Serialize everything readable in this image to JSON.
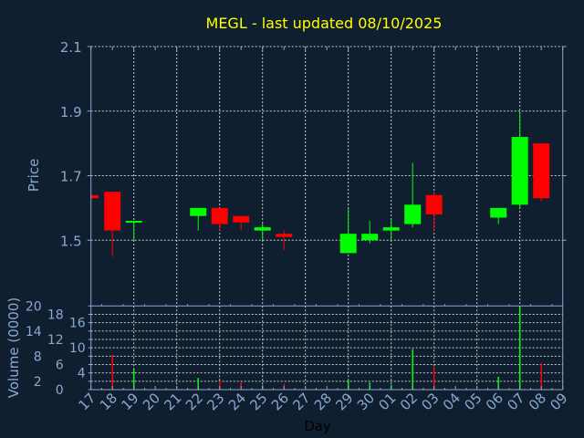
{
  "chart_data": {
    "type": "candlestick",
    "title": "MEGL - last updated 08/10/2025",
    "xlabel": "Day",
    "ylabel": "Price",
    "volume_label": "Volume (0000)",
    "x_ticks": [
      "17",
      "18",
      "19",
      "20",
      "21",
      "22",
      "23",
      "24",
      "25",
      "26",
      "27",
      "28",
      "29",
      "30",
      "01",
      "02",
      "03",
      "04",
      "05",
      "06",
      "07",
      "08",
      "09"
    ],
    "price_ylim": [
      1.3,
      2.1
    ],
    "price_ticks": [
      "1.5",
      "1.7",
      "1.9",
      "2.1"
    ],
    "volume_ylim": [
      0,
      20
    ],
    "volume_ticks": [
      "0",
      "2",
      "4",
      "6",
      "8",
      "10",
      "12",
      "14",
      "16",
      "18",
      "20"
    ],
    "grid": true,
    "colors": {
      "up": "#00ff00",
      "down": "#ff0000",
      "background": "#0f1f30",
      "axis": "#8aa8d0",
      "title": "#ffff00"
    },
    "candles": [
      {
        "day": "17",
        "open": 1.64,
        "high": 1.64,
        "low": 1.63,
        "close": 1.63,
        "volume": 0
      },
      {
        "day": "18",
        "open": 1.65,
        "high": 1.65,
        "low": 1.45,
        "close": 1.53,
        "volume": 8.3
      },
      {
        "day": "19",
        "open": 1.555,
        "high": 1.56,
        "low": 1.5,
        "close": 1.56,
        "volume": 4.8
      },
      {
        "day": "22",
        "open": 1.575,
        "high": 1.6,
        "low": 1.53,
        "close": 1.6,
        "volume": 2.8
      },
      {
        "day": "23",
        "open": 1.6,
        "high": 1.6,
        "low": 1.53,
        "close": 1.55,
        "volume": 2.0
      },
      {
        "day": "24",
        "open": 1.575,
        "high": 1.575,
        "low": 1.53,
        "close": 1.555,
        "volume": 1.8
      },
      {
        "day": "25",
        "open": 1.53,
        "high": 1.555,
        "low": 1.5,
        "close": 1.54,
        "volume": 1.0
      },
      {
        "day": "26",
        "open": 1.52,
        "high": 1.53,
        "low": 1.47,
        "close": 1.51,
        "volume": 1.4
      },
      {
        "day": "29",
        "open": 1.46,
        "high": 1.6,
        "low": 1.46,
        "close": 1.52,
        "volume": 2.2
      },
      {
        "day": "30",
        "open": 1.5,
        "high": 1.56,
        "low": 1.49,
        "close": 1.52,
        "volume": 1.7
      },
      {
        "day": "01",
        "open": 1.53,
        "high": 1.565,
        "low": 1.5,
        "close": 1.54,
        "volume": 1.1
      },
      {
        "day": "02",
        "open": 1.55,
        "high": 1.74,
        "low": 1.54,
        "close": 1.61,
        "volume": 9.7
      },
      {
        "day": "03",
        "open": 1.64,
        "high": 1.65,
        "low": 1.53,
        "close": 1.58,
        "volume": 5.4
      },
      {
        "day": "06",
        "open": 1.57,
        "high": 1.6,
        "low": 1.55,
        "close": 1.6,
        "volume": 3.1
      },
      {
        "day": "07",
        "open": 1.61,
        "high": 1.9,
        "low": 1.6,
        "close": 1.82,
        "volume": 19.8
      },
      {
        "day": "08",
        "open": 1.8,
        "high": 1.8,
        "low": 1.62,
        "close": 1.63,
        "volume": 6.3
      }
    ]
  }
}
